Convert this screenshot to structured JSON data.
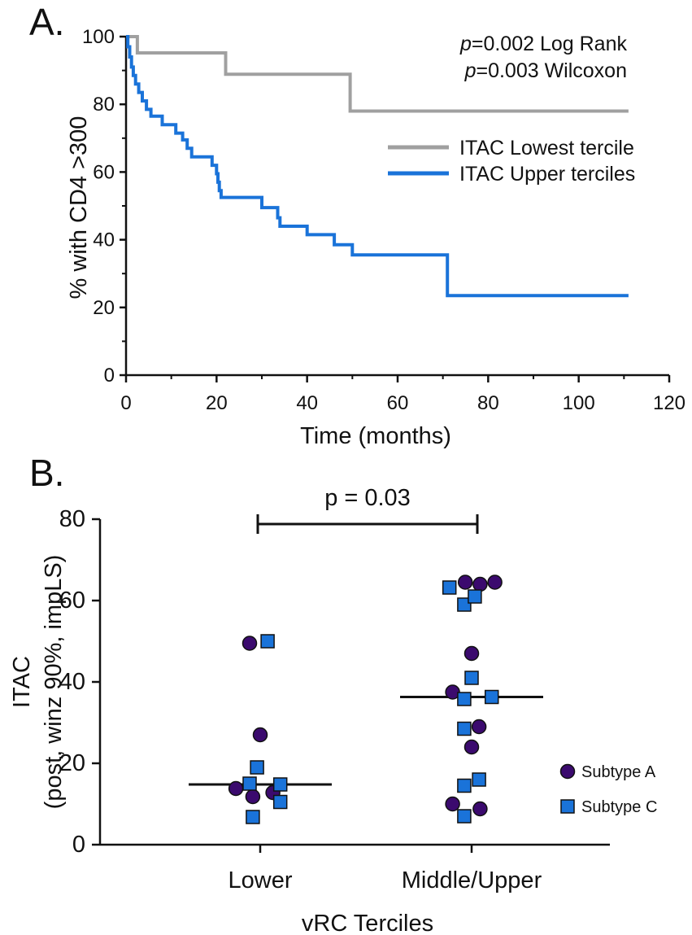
{
  "chart_data": [
    {
      "panel_label": "A.",
      "type": "line",
      "subtype": "kaplan-meier-step",
      "xlabel": "Time (months)",
      "ylabel": "% with CD4 >300",
      "xlim": [
        0,
        120
      ],
      "ylim": [
        0,
        100
      ],
      "xticks": [
        "0",
        "20",
        "40",
        "60",
        "80",
        "100",
        "120"
      ],
      "yticks": [
        "0",
        "20",
        "40",
        "60",
        "80",
        "100"
      ],
      "annotations": {
        "p_symbol": "p",
        "logrank": "=0.002 Log Rank",
        "wilcoxon": "=0.003 Wilcoxon"
      },
      "legend_position": "top-right",
      "series": [
        {
          "name": "ITAC Lowest tercile",
          "color": "#a0a0a0",
          "steps": [
            [
              0,
              100
            ],
            [
              2.5,
              100
            ],
            [
              2.5,
              95.2
            ],
            [
              22,
              95.2
            ],
            [
              22,
              88.9
            ],
            [
              49.5,
              88.9
            ],
            [
              49.5,
              78
            ],
            [
              111,
              78
            ]
          ]
        },
        {
          "name": "ITAC Upper terciles",
          "color": "#1a73d9",
          "steps": [
            [
              0,
              100
            ],
            [
              0.4,
              100
            ],
            [
              0.4,
              97
            ],
            [
              0.8,
              97
            ],
            [
              0.8,
              94
            ],
            [
              1.2,
              94
            ],
            [
              1.2,
              91
            ],
            [
              1.6,
              91
            ],
            [
              1.6,
              88.5
            ],
            [
              2.1,
              88.5
            ],
            [
              2.1,
              86
            ],
            [
              2.8,
              86
            ],
            [
              2.8,
              83.5
            ],
            [
              3.6,
              83.5
            ],
            [
              3.6,
              81
            ],
            [
              4.5,
              81
            ],
            [
              4.5,
              78.5
            ],
            [
              5.5,
              78.5
            ],
            [
              5.5,
              76.5
            ],
            [
              8,
              76.5
            ],
            [
              8,
              74
            ],
            [
              11,
              74
            ],
            [
              11,
              71.5
            ],
            [
              12.5,
              71.5
            ],
            [
              12.5,
              69.5
            ],
            [
              13.5,
              69.5
            ],
            [
              13.5,
              67
            ],
            [
              14.5,
              67
            ],
            [
              14.5,
              64.5
            ],
            [
              19,
              64.5
            ],
            [
              19,
              62
            ],
            [
              20,
              62
            ],
            [
              20,
              59.5
            ],
            [
              20.3,
              59.5
            ],
            [
              20.3,
              57
            ],
            [
              20.6,
              57
            ],
            [
              20.6,
              54.5
            ],
            [
              21,
              54.5
            ],
            [
              21,
              52.5
            ],
            [
              30,
              52.5
            ],
            [
              30,
              49.5
            ],
            [
              33.5,
              49.5
            ],
            [
              33.5,
              46.5
            ],
            [
              34,
              46.5
            ],
            [
              34,
              44
            ],
            [
              40,
              44
            ],
            [
              40,
              41.5
            ],
            [
              46,
              41.5
            ],
            [
              46,
              38.5
            ],
            [
              50,
              38.5
            ],
            [
              50,
              35.5
            ],
            [
              71,
              35.5
            ],
            [
              71,
              23.5
            ],
            [
              111,
              23.5
            ]
          ]
        }
      ]
    },
    {
      "panel_label": "B.",
      "type": "scatter",
      "xlabel": "vRC Terciles",
      "ylabel_line1": "ITAC",
      "ylabel_line2": "(post, winz 90%, impLS)",
      "categories": [
        "Lower",
        "Middle/Upper"
      ],
      "ylim": [
        0,
        80
      ],
      "yticks": [
        "0",
        "20",
        "40",
        "60",
        "80"
      ],
      "pvalue": "p = 0.03",
      "medians": [
        14.8,
        36.3
      ],
      "legend_position": "right",
      "series": [
        {
          "name": "Subtype A",
          "marker": "circle",
          "color": "#3b0a6e",
          "points": [
            {
              "group": 0,
              "offset": -0.23,
              "y": 13.8
            },
            {
              "group": 0,
              "offset": -0.07,
              "y": 11.8
            },
            {
              "group": 0,
              "offset": 0.12,
              "y": 12.8
            },
            {
              "group": 0,
              "offset": 0,
              "y": 27
            },
            {
              "group": 0,
              "offset": -0.1,
              "y": 49.5
            },
            {
              "group": 1,
              "offset": -0.18,
              "y": 10.0
            },
            {
              "group": 1,
              "offset": 0.08,
              "y": 8.8
            },
            {
              "group": 1,
              "offset": 0,
              "y": 24.0
            },
            {
              "group": 1,
              "offset": 0.07,
              "y": 29.0
            },
            {
              "group": 1,
              "offset": -0.18,
              "y": 37.5
            },
            {
              "group": 1,
              "offset": 0,
              "y": 47.0
            },
            {
              "group": 1,
              "offset": -0.06,
              "y": 64.5
            },
            {
              "group": 1,
              "offset": 0.08,
              "y": 64.0
            },
            {
              "group": 1,
              "offset": 0.22,
              "y": 64.5
            }
          ]
        },
        {
          "name": "Subtype C",
          "marker": "square",
          "color": "#1a73d9",
          "points": [
            {
              "group": 0,
              "offset": -0.07,
              "y": 6.8
            },
            {
              "group": 0,
              "offset": 0.19,
              "y": 10.5
            },
            {
              "group": 0,
              "offset": -0.1,
              "y": 15.0
            },
            {
              "group": 0,
              "offset": 0.19,
              "y": 14.8
            },
            {
              "group": 0,
              "offset": -0.03,
              "y": 19.0
            },
            {
              "group": 0,
              "offset": 0.07,
              "y": 50.0
            },
            {
              "group": 1,
              "offset": -0.07,
              "y": 7.0
            },
            {
              "group": 1,
              "offset": -0.07,
              "y": 14.5
            },
            {
              "group": 1,
              "offset": 0.07,
              "y": 16.0
            },
            {
              "group": 1,
              "offset": -0.07,
              "y": 28.5
            },
            {
              "group": 1,
              "offset": -0.07,
              "y": 35.8
            },
            {
              "group": 1,
              "offset": 0,
              "y": 41.0
            },
            {
              "group": 1,
              "offset": 0.19,
              "y": 36.3
            },
            {
              "group": 1,
              "offset": -0.21,
              "y": 63.2
            },
            {
              "group": 1,
              "offset": -0.07,
              "y": 59.0
            },
            {
              "group": 1,
              "offset": 0.03,
              "y": 61.0
            }
          ]
        }
      ]
    }
  ]
}
